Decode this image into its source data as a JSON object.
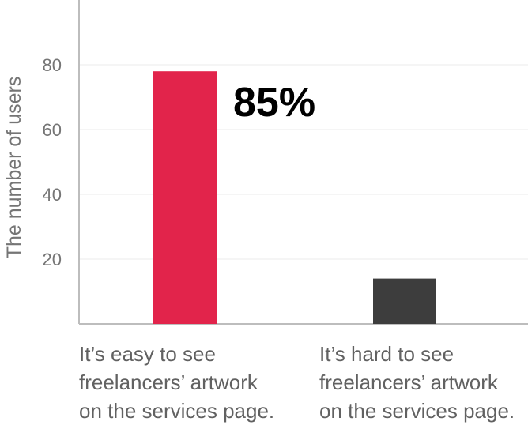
{
  "chart_data": {
    "type": "bar",
    "title": "",
    "xlabel": "",
    "ylabel": "The number of users",
    "ylim": [
      0,
      100
    ],
    "yticks": [
      20,
      40,
      60,
      80
    ],
    "grid": true,
    "categories": [
      [
        "It’s easy to see",
        "freelancers’ artwork",
        "on the services page."
      ],
      [
        "It’s hard to see",
        "freelancers’ artwork",
        "on the services page."
      ]
    ],
    "values": [
      78,
      14
    ],
    "bar_colors": [
      "#e2244b",
      "#3d3d3d"
    ],
    "annotation": {
      "text": "85%",
      "category_index": 0
    }
  }
}
